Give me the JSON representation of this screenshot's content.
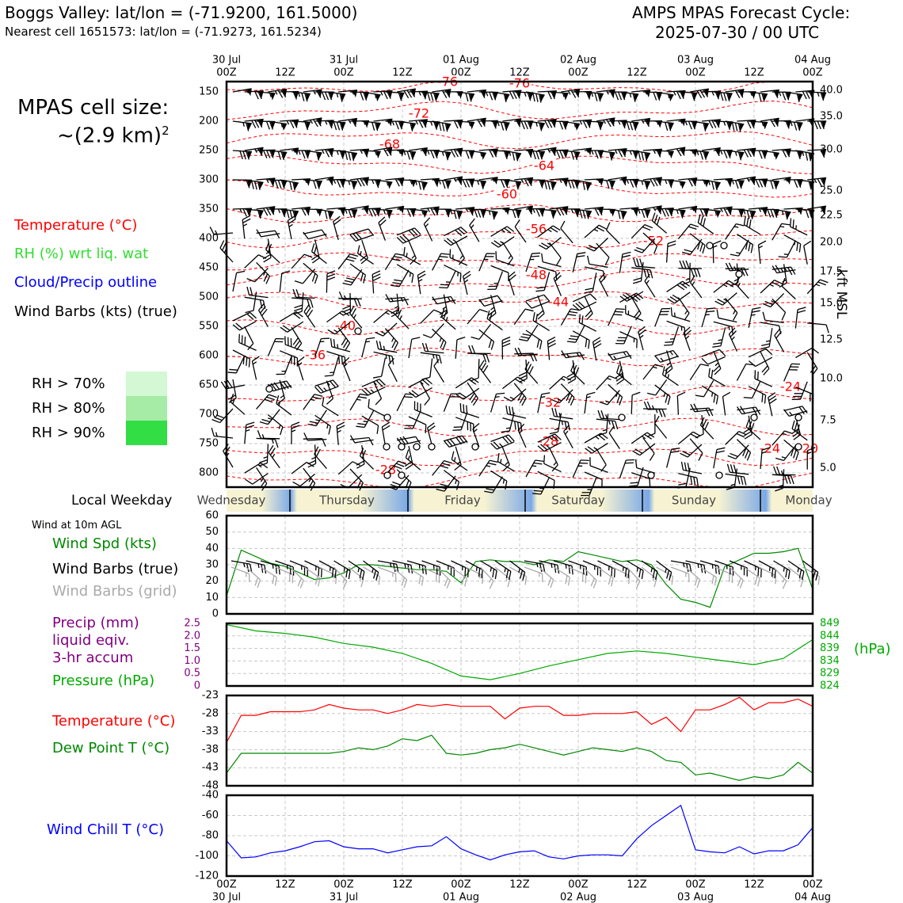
{
  "header": {
    "location": "Boggs Valley: lat/lon = (-71.9200, 161.5000)",
    "nearest": "Nearest cell 1651573: lat/lon = (-71.9273, 161.5234)",
    "cycle_title": "AMPS MPAS Forecast Cycle:",
    "cycle_time": "2025-07-30 / 00 UTC"
  },
  "left_panel": {
    "cell_size_label": "MPAS cell size:",
    "cell_size_value": "~(2.9 km)",
    "cell_size_exp": "2",
    "legend_temperature": "Temperature (°C)",
    "legend_rh": "RH (%) wrt liq. wat",
    "legend_cloud": "Cloud/Precip outline",
    "legend_wind": "Wind Barbs (kts) (true)",
    "rh70": "RH > 70%",
    "rh80": "RH > 80%",
    "rh90": "RH > 90%",
    "local_weekday": "Local Weekday",
    "wind10m": "Wind at 10m AGL",
    "wind_spd": "Wind Spd (kts)",
    "wind_barbs_true": "Wind Barbs (true)",
    "wind_barbs_grid": "Wind Barbs (grid)",
    "precip1": "Precip (mm)",
    "precip2": "liquid eqiv.",
    "precip3": "3-hr accum",
    "pressure": "Pressure (hPa)",
    "temperature": "Temperature (°C)",
    "dewpoint": "Dew Point T (°C)",
    "windchill": "Wind Chill T (°C)",
    "hpa_unit": "(hPa)",
    "kft_label": "kft MSL"
  },
  "colors": {
    "temperature": "#ff0000",
    "rh": "#33cc33",
    "cloud": "#0000ff",
    "wind": "#000000",
    "grid_barbs": "#aaaaaa",
    "precip": "#800080",
    "pressure": "#00aa00",
    "dewpoint": "#008800",
    "windchill": "#0000ff",
    "rh70": "#d4f7d4",
    "rh80": "#a6eba6",
    "rh90": "#33dd44"
  },
  "time_axis": {
    "top_dates": [
      "30 Jul",
      "31 Jul",
      "01 Aug",
      "02 Aug",
      "03 Aug",
      "04 Aug"
    ],
    "labels": [
      "00Z",
      "12Z",
      "00Z",
      "12Z",
      "00Z",
      "12Z",
      "00Z",
      "12Z",
      "00Z",
      "12Z",
      "00Z"
    ],
    "bottom_dates": [
      "30 Jul",
      "31 Jul",
      "01 Aug",
      "02 Aug",
      "03 Aug",
      "04 Aug"
    ]
  },
  "weekdays": [
    "Wednesday",
    "Thursday",
    "Friday",
    "Saturday",
    "Sunday",
    "Monday"
  ],
  "chart_data": [
    {
      "type": "heatmap",
      "name": "cross-section",
      "ylabel_left": "pressure (hPa)",
      "ylabel_right": "kft MSL",
      "y_ticks_left": [
        150,
        200,
        250,
        300,
        350,
        400,
        450,
        500,
        550,
        600,
        650,
        700,
        750,
        800
      ],
      "y_ticks_right": [
        "40.0",
        "35.0",
        "30.0",
        "25.0",
        "22.5",
        "20.0",
        "17.5",
        "15.0",
        "12.5",
        "10.0",
        "7.5",
        "5.0"
      ],
      "temperature_contour_labels": [
        "-76",
        "-76",
        "-72",
        "-68",
        "-64",
        "-60",
        "-56",
        "-52",
        "-48",
        "-44",
        "-40",
        "-36",
        "-32",
        "-28",
        "-28",
        "-24",
        "-20",
        "-24"
      ]
    },
    {
      "type": "line",
      "name": "wind speed",
      "ylim": [
        0,
        60
      ],
      "yticks": [
        "0",
        "10",
        "20",
        "30",
        "40",
        "50",
        "60"
      ],
      "x_hours": [
        0,
        3,
        6,
        9,
        12,
        15,
        18,
        21,
        24,
        27,
        30,
        33,
        36,
        39,
        42,
        45,
        48,
        51,
        54,
        57,
        60,
        63,
        66,
        69,
        72,
        75,
        78,
        81,
        84,
        87,
        90,
        93,
        96,
        99,
        102,
        105,
        108,
        111,
        114,
        117,
        120
      ],
      "values": [
        11,
        39,
        35,
        31,
        29,
        25,
        21,
        22,
        25,
        30,
        30,
        29,
        28,
        27,
        27,
        26,
        19,
        32,
        33,
        32,
        32,
        30,
        33,
        32,
        38,
        36,
        34,
        32,
        33,
        30,
        18,
        9,
        7,
        4,
        29,
        33,
        37,
        37,
        38,
        40,
        15
      ]
    },
    {
      "type": "line",
      "name": "pressure",
      "y_left_ticks": [
        "0",
        "0.5",
        "1.0",
        "1.5",
        "2.0",
        "2.5"
      ],
      "y_right_ticks": [
        "824",
        "829",
        "834",
        "839",
        "844",
        "849"
      ],
      "ylim": [
        824,
        849
      ],
      "x_hours": [
        0,
        6,
        12,
        18,
        24,
        30,
        36,
        42,
        48,
        54,
        60,
        66,
        72,
        78,
        84,
        90,
        96,
        102,
        108,
        114,
        120
      ],
      "values": [
        848.5,
        846,
        845,
        843.5,
        841,
        839.5,
        837,
        833,
        828,
        826.5,
        829,
        832,
        834.5,
        837,
        838,
        837,
        835.5,
        834,
        832.5,
        835,
        842.5
      ]
    },
    {
      "type": "line",
      "name": "temperature",
      "ylim": [
        -48,
        -23
      ],
      "yticks": [
        "-23",
        "-28",
        "-33",
        "-38",
        "-43",
        "-48"
      ],
      "x_hours": [
        0,
        3,
        6,
        9,
        12,
        15,
        18,
        21,
        24,
        27,
        30,
        33,
        36,
        39,
        42,
        45,
        48,
        51,
        54,
        57,
        60,
        63,
        66,
        69,
        72,
        75,
        78,
        81,
        84,
        87,
        90,
        93,
        96,
        99,
        102,
        105,
        108,
        111,
        114,
        117,
        120
      ],
      "values": [
        -36,
        -28.5,
        -28.5,
        -27.5,
        -27.5,
        -27.5,
        -27,
        -25.5,
        -26.5,
        -27,
        -27,
        -28,
        -27,
        -25.5,
        -26,
        -25.5,
        -26,
        -26,
        -26,
        -29.5,
        -26.5,
        -26,
        -26,
        -28.5,
        -28.5,
        -28,
        -28,
        -28,
        -27.5,
        -31,
        -29,
        -33,
        -27,
        -27,
        -25.5,
        -23.5,
        -27,
        -25,
        -25,
        -24,
        -26
      ]
    },
    {
      "type": "line",
      "name": "dew point",
      "ylim": [
        -48,
        -23
      ],
      "x_hours": [
        0,
        3,
        6,
        9,
        12,
        15,
        18,
        21,
        24,
        27,
        30,
        33,
        36,
        39,
        42,
        45,
        48,
        51,
        54,
        57,
        60,
        63,
        66,
        69,
        72,
        75,
        78,
        81,
        84,
        87,
        90,
        93,
        96,
        99,
        102,
        105,
        108,
        111,
        114,
        117,
        120
      ],
      "values": [
        -44.5,
        -39,
        -39,
        -39,
        -39,
        -39,
        -39,
        -39,
        -38.5,
        -37.5,
        -38,
        -37,
        -35,
        -35.5,
        -34,
        -39,
        -39.5,
        -39,
        -38,
        -37.5,
        -36.5,
        -37.5,
        -38.5,
        -39.5,
        -38.5,
        -37.5,
        -38,
        -38.5,
        -37.5,
        -38.5,
        -41,
        -41.5,
        -45,
        -44.5,
        -45.5,
        -46.5,
        -45.5,
        -46,
        -45,
        -41.5,
        -44.5
      ]
    },
    {
      "type": "line",
      "name": "wind chill",
      "ylim": [
        -120,
        -40
      ],
      "yticks": [
        "-40",
        "-60",
        "-80",
        "-100",
        "-120"
      ],
      "x_hours": [
        0,
        3,
        6,
        9,
        12,
        15,
        18,
        21,
        24,
        27,
        30,
        33,
        36,
        39,
        42,
        45,
        48,
        51,
        54,
        57,
        60,
        63,
        66,
        69,
        72,
        75,
        78,
        81,
        84,
        87,
        90,
        93,
        96,
        99,
        102,
        105,
        108,
        111,
        114,
        117,
        120
      ],
      "values": [
        -85,
        -102,
        -101,
        -97,
        -95,
        -91,
        -86,
        -85,
        -91,
        -93,
        -93,
        -97,
        -94,
        -91,
        -90,
        -81,
        -93,
        -99,
        -104,
        -99,
        -96,
        -95,
        -101,
        -103,
        -100,
        -99,
        -99,
        -100,
        -83,
        -70,
        -60,
        -50,
        -94,
        -96,
        -97,
        -91,
        -98,
        -95,
        -95,
        -89,
        -72
      ]
    }
  ]
}
